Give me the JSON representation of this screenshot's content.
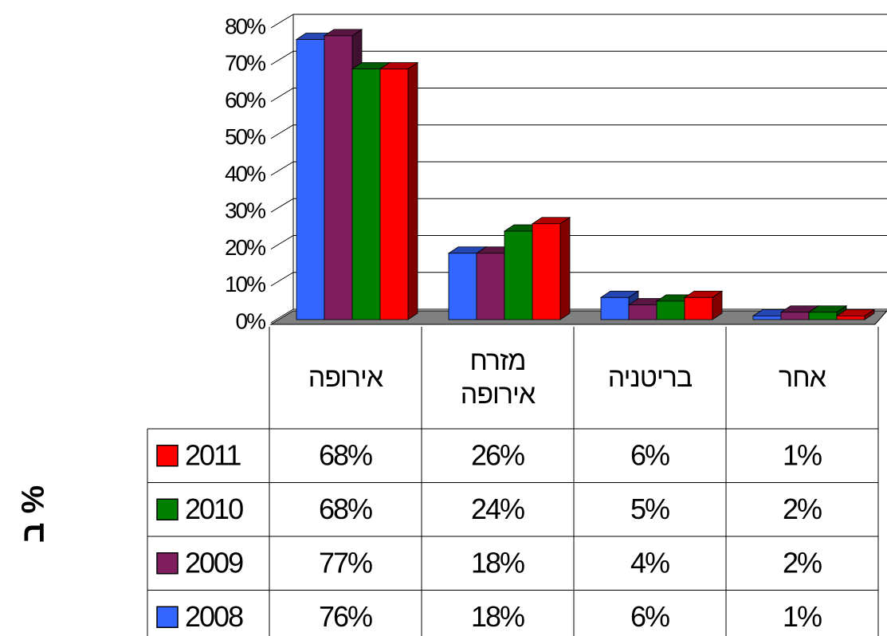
{
  "chart_data": {
    "type": "bar3d",
    "y_label": "ב %",
    "categories": [
      "אירופה",
      "מזרח אירופה",
      "בריטניה",
      "אחר"
    ],
    "series": [
      {
        "name": "2008",
        "color": "#3366ff",
        "values": [
          76,
          18,
          6,
          1
        ],
        "value_labels": [
          "76%",
          "18%",
          "6%",
          "1%"
        ]
      },
      {
        "name": "2009",
        "color": "#7f1f5f",
        "values": [
          77,
          18,
          4,
          2
        ],
        "value_labels": [
          "77%",
          "18%",
          "4%",
          "2%"
        ]
      },
      {
        "name": "2010",
        "color": "#008000",
        "values": [
          68,
          24,
          5,
          2
        ],
        "value_labels": [
          "68%",
          "24%",
          "5%",
          "2%"
        ]
      },
      {
        "name": "2011",
        "color": "#ff0000",
        "values": [
          68,
          26,
          6,
          1
        ],
        "value_labels": [
          "68%",
          "26%",
          "6%",
          "1%"
        ]
      }
    ],
    "ylim": [
      0,
      80
    ],
    "yticks": [
      {
        "value": 0,
        "label": "0%"
      },
      {
        "value": 10,
        "label": "10%"
      },
      {
        "value": 20,
        "label": "20%"
      },
      {
        "value": 30,
        "label": "30%"
      },
      {
        "value": 40,
        "label": "40%"
      },
      {
        "value": 50,
        "label": "50%"
      },
      {
        "value": 60,
        "label": "60%"
      },
      {
        "value": 70,
        "label": "70%"
      },
      {
        "value": 80,
        "label": "80%"
      }
    ],
    "grid": true,
    "floor_color": "#808080"
  }
}
